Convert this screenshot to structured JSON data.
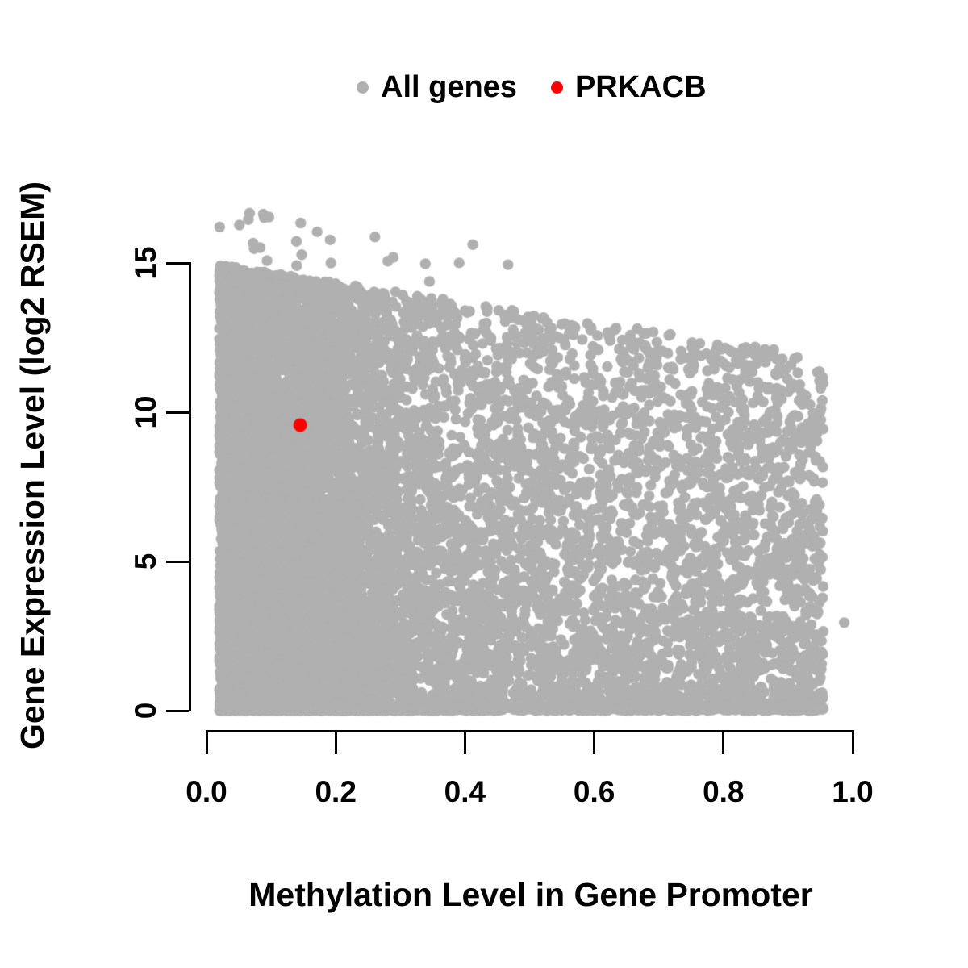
{
  "figure": {
    "background_color": "#ffffff",
    "axis_color": "#000000",
    "text_color": "#000000"
  },
  "legend": {
    "position": "top",
    "items": [
      {
        "label": "All genes",
        "color": "#B0B0B0"
      },
      {
        "label": "PRKACB",
        "color": "#FF0000"
      }
    ]
  },
  "axes": {
    "x": {
      "label": "Methylation Level in Gene Promoter",
      "ticks": [
        "0.0",
        "0.2",
        "0.4",
        "0.6",
        "0.8",
        "1.0"
      ],
      "tick_values": [
        0,
        0.2,
        0.4,
        0.6,
        0.8,
        1.0
      ],
      "range": [
        0,
        1
      ]
    },
    "y": {
      "label": "Gene Expression Level (log2 RSEM)",
      "ticks": [
        "0",
        "5",
        "10",
        "15"
      ],
      "tick_values": [
        0,
        5,
        10,
        15
      ],
      "range": [
        0,
        17
      ]
    }
  },
  "chart_data": {
    "type": "scatter",
    "title": "",
    "xlabel": "Methylation Level in Gene Promoter",
    "ylabel": "Gene Expression Level (log2 RSEM)",
    "xlim": [
      0,
      1
    ],
    "ylim": [
      0,
      17
    ],
    "x_ticks": [
      0,
      0.2,
      0.4,
      0.6,
      0.8,
      1.0
    ],
    "y_ticks": [
      0,
      5,
      10,
      15
    ],
    "grid": false,
    "legend_position": "top-center",
    "series": [
      {
        "name": "All genes",
        "color": "#B0B0B0",
        "marker": "circle",
        "marker_radius_px": 6.7,
        "description": "Dense cloud of ~13000 genes; methylation 0.02-0.96, expression 0-16.9; upper envelope declines from ~15 at methylation 0 to ~12 at methylation 0.95; heavy concentration at low methylation and a solid band at expression 0.",
        "cloud_generator": {
          "seed": 7,
          "n_points": 13000,
          "x_min": 0.02,
          "x_max": 0.955,
          "left_cluster_fraction": 0.5,
          "left_cluster_sigma": 0.14,
          "spread_exponent": 1.25,
          "envelope_top_at_x0": 15.0,
          "envelope_slope": -3.3,
          "y_exponent": 1.4,
          "zero_expression_fraction": 0.09,
          "zero_sigma": 0.1,
          "outlier_count": 26,
          "outlier_extra_max": 1.7,
          "y_cap": 16.9
        },
        "isolated_points": [
          {
            "x": 0.987,
            "y": 2.95
          }
        ]
      },
      {
        "name": "PRKACB",
        "color": "#FF0000",
        "marker": "circle",
        "marker_radius_px": 8.5,
        "points": [
          {
            "x": 0.145,
            "y": 9.57
          }
        ]
      }
    ]
  }
}
